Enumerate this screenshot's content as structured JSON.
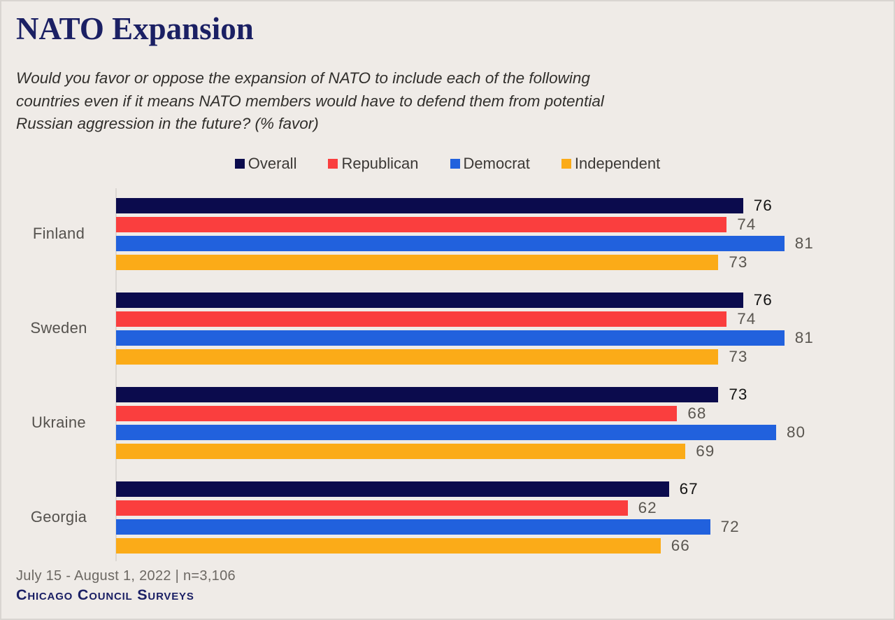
{
  "title": "NATO Expansion",
  "subtitle_lines": [
    "Would you favor or oppose the expansion of NATO to include each of the following",
    "countries even if it means NATO members would have to defend them from potential",
    "Russian aggression in the future? (% favor)"
  ],
  "legend": {
    "items": [
      {
        "label": "Overall",
        "color": "#0b0b4d"
      },
      {
        "label": "Republican",
        "color": "#fa3e3e"
      },
      {
        "label": "Democrat",
        "color": "#2161dd"
      },
      {
        "label": "Independent",
        "color": "#fbab18"
      }
    ]
  },
  "chart_data": {
    "type": "bar",
    "orientation": "horizontal",
    "title": "NATO Expansion",
    "categories": [
      "Finland",
      "Sweden",
      "Ukraine",
      "Georgia"
    ],
    "series": [
      {
        "name": "Overall",
        "color": "#0b0b4d",
        "values": [
          76,
          76,
          73,
          67
        ]
      },
      {
        "name": "Republican",
        "color": "#fa3e3e",
        "values": [
          74,
          74,
          68,
          62
        ]
      },
      {
        "name": "Democrat",
        "color": "#2161dd",
        "values": [
          81,
          81,
          80,
          72
        ]
      },
      {
        "name": "Independent",
        "color": "#fbab18",
        "values": [
          73,
          73,
          69,
          66
        ]
      }
    ],
    "xlim": [
      0,
      100
    ],
    "grid": false,
    "value_labels": true,
    "legend_position": "top-center"
  },
  "footer": {
    "source_line": "July 15 - August 1, 2022 | n=3,106",
    "brand": "Chicago Council Surveys"
  }
}
